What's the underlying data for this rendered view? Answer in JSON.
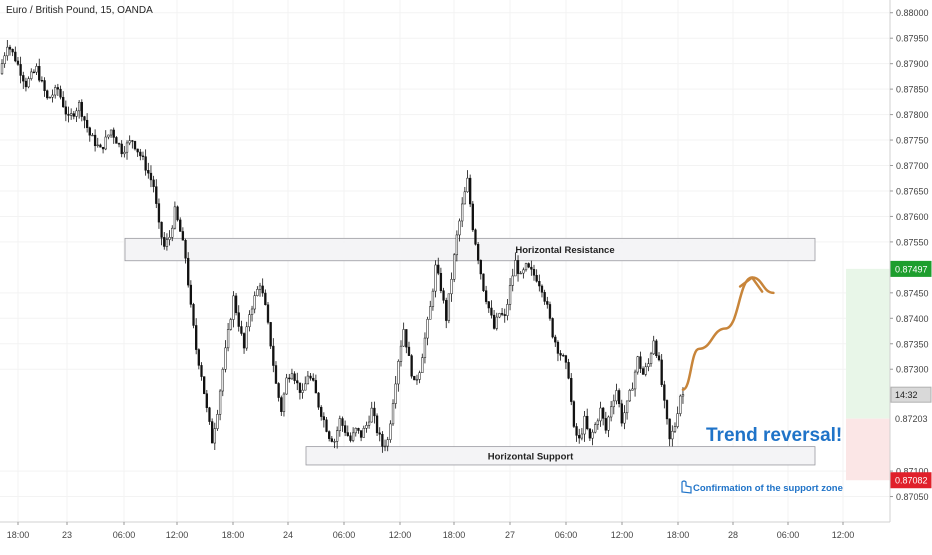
{
  "header": {
    "symbol_title": "Euro / British Pound, 15, OANDA"
  },
  "chart_data": {
    "type": "candlestick",
    "title": "Euro / British Pound, 15, OANDA",
    "x_axis": {
      "tick_labels": [
        "18:00",
        "23",
        "06:00",
        "12:00",
        "18:00",
        "24",
        "06:00",
        "12:00",
        "18:00",
        "27",
        "06:00",
        "12:00",
        "18:00",
        "28",
        "06:00",
        "12:00"
      ]
    },
    "y_axis": {
      "ylim": [
        0.87,
        0.88025
      ],
      "tick_labels": [
        "0.88000",
        "0.87950",
        "0.87900",
        "0.87850",
        "0.87800",
        "0.87750",
        "0.87700",
        "0.87650",
        "0.87600",
        "0.87550",
        "0.87450",
        "0.87400",
        "0.87350",
        "0.87300",
        "0.87100",
        "0.87050"
      ],
      "tick_values": [
        0.88,
        0.8795,
        0.879,
        0.8785,
        0.878,
        0.8775,
        0.877,
        0.8765,
        0.876,
        0.8755,
        0.8745,
        0.874,
        0.8735,
        0.873,
        0.871,
        0.8705
      ]
    },
    "price_labels": {
      "target": {
        "value": 0.87497,
        "text": "0.87497",
        "color": "#1e9e2e"
      },
      "current": {
        "value": 0.8725,
        "text": "14:32",
        "color": "#b0b0b0"
      },
      "entry": {
        "value": 0.87203,
        "text": "0.87203"
      },
      "stop": {
        "value": 0.87082,
        "text": "0.87082",
        "color": "#e0202a"
      }
    },
    "zones": [
      {
        "name": "Horizontal Resistance",
        "label": "Horizontal Resistance",
        "from": 0.87513,
        "to": 0.87557
      },
      {
        "name": "Horizontal Support",
        "label": "Horizontal Support",
        "from": 0.87112,
        "to": 0.87148
      }
    ],
    "position": {
      "take_profit": 0.87497,
      "entry": 0.87203,
      "stop_loss": 0.87082,
      "profit_color": "#e8f6e8",
      "loss_color": "#fbe6e6"
    },
    "annotations": {
      "headline": "Trend reversal!",
      "note": "Confirmation of the support zone",
      "headline_color": "#1f73c8",
      "arrow_color": "#c8853a"
    },
    "path": [
      [
        0,
        0.8788
      ],
      [
        3,
        0.8794
      ],
      [
        6,
        0.8791
      ],
      [
        10,
        0.8786
      ],
      [
        14,
        0.8789
      ],
      [
        18,
        0.8783
      ],
      [
        22,
        0.8785
      ],
      [
        26,
        0.8779
      ],
      [
        30,
        0.8782
      ],
      [
        34,
        0.8776
      ],
      [
        38,
        0.8773
      ],
      [
        42,
        0.8777
      ],
      [
        46,
        0.8773
      ],
      [
        50,
        0.8775
      ],
      [
        54,
        0.8771
      ],
      [
        58,
        0.8766
      ],
      [
        60,
        0.8758
      ],
      [
        62,
        0.8754
      ],
      [
        64,
        0.8756
      ],
      [
        66,
        0.8761
      ],
      [
        68,
        0.8757
      ],
      [
        70,
        0.8752
      ],
      [
        72,
        0.8742
      ],
      [
        74,
        0.8734
      ],
      [
        76,
        0.8729
      ],
      [
        78,
        0.8722
      ],
      [
        80,
        0.8716
      ],
      [
        82,
        0.8722
      ],
      [
        84,
        0.873
      ],
      [
        86,
        0.8737
      ],
      [
        88,
        0.8744
      ],
      [
        90,
        0.8739
      ],
      [
        92,
        0.8734
      ],
      [
        94,
        0.8741
      ],
      [
        96,
        0.8744
      ],
      [
        98,
        0.8747
      ],
      [
        100,
        0.8742
      ],
      [
        102,
        0.8735
      ],
      [
        104,
        0.8727
      ],
      [
        106,
        0.8722
      ],
      [
        108,
        0.8728
      ],
      [
        110,
        0.873
      ],
      [
        112,
        0.8727
      ],
      [
        114,
        0.8725
      ],
      [
        116,
        0.8729
      ],
      [
        118,
        0.8727
      ],
      [
        120,
        0.8723
      ],
      [
        122,
        0.872
      ],
      [
        124,
        0.8717
      ],
      [
        126,
        0.8716
      ],
      [
        128,
        0.872
      ],
      [
        130,
        0.8718
      ],
      [
        132,
        0.8716
      ],
      [
        134,
        0.8718
      ],
      [
        136,
        0.8717
      ],
      [
        138,
        0.8719
      ],
      [
        140,
        0.8722
      ],
      [
        142,
        0.8718
      ],
      [
        144,
        0.8715
      ],
      [
        146,
        0.8716
      ],
      [
        148,
        0.8724
      ],
      [
        150,
        0.8732
      ],
      [
        152,
        0.8738
      ],
      [
        154,
        0.8732
      ],
      [
        156,
        0.8727
      ],
      [
        158,
        0.873
      ],
      [
        160,
        0.8736
      ],
      [
        162,
        0.8742
      ],
      [
        164,
        0.875
      ],
      [
        166,
        0.8746
      ],
      [
        168,
        0.874
      ],
      [
        170,
        0.8748
      ],
      [
        172,
        0.8756
      ],
      [
        174,
        0.8762
      ],
      [
        176,
        0.8767
      ],
      [
        178,
        0.8758
      ],
      [
        180,
        0.8752
      ],
      [
        182,
        0.8746
      ],
      [
        184,
        0.8742
      ],
      [
        186,
        0.8738
      ],
      [
        188,
        0.8741
      ],
      [
        190,
        0.874
      ],
      [
        192,
        0.8746
      ],
      [
        194,
        0.8751
      ],
      [
        196,
        0.8748
      ],
      [
        198,
        0.875
      ],
      [
        200,
        0.8749
      ],
      [
        202,
        0.8748
      ],
      [
        204,
        0.8746
      ],
      [
        206,
        0.8742
      ],
      [
        208,
        0.8737
      ],
      [
        210,
        0.8734
      ],
      [
        212,
        0.8732
      ],
      [
        214,
        0.8729
      ],
      [
        216,
        0.8718
      ],
      [
        218,
        0.8716
      ],
      [
        220,
        0.872
      ],
      [
        222,
        0.8716
      ],
      [
        224,
        0.8719
      ],
      [
        226,
        0.8722
      ],
      [
        228,
        0.8718
      ],
      [
        230,
        0.8723
      ],
      [
        232,
        0.8726
      ],
      [
        234,
        0.872
      ],
      [
        236,
        0.8723
      ],
      [
        238,
        0.8727
      ],
      [
        240,
        0.8732
      ],
      [
        242,
        0.8729
      ],
      [
        244,
        0.8731
      ],
      [
        246,
        0.8736
      ],
      [
        248,
        0.8731
      ],
      [
        250,
        0.8723
      ],
      [
        252,
        0.8716
      ],
      [
        254,
        0.8719
      ],
      [
        256,
        0.8725
      ]
    ],
    "forecast_path": [
      [
        256,
        0.8726
      ],
      [
        262,
        0.8734
      ],
      [
        272,
        0.8738
      ],
      [
        282,
        0.8748
      ],
      [
        290,
        0.8745
      ]
    ]
  }
}
